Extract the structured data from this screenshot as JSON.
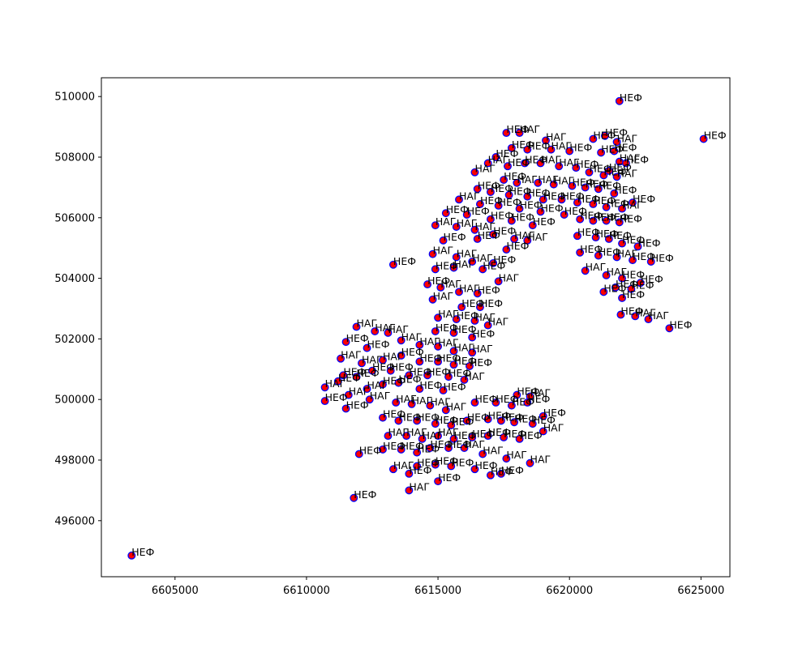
{
  "chart_data": {
    "type": "scatter",
    "title": "",
    "xlabel": "",
    "ylabel": "",
    "xlim": [
      6602200,
      6626100
    ],
    "ylim": [
      494150,
      510620
    ],
    "x_ticks": [
      6605000,
      6610000,
      6615000,
      6620000,
      6625000
    ],
    "y_ticks": [
      496000,
      498000,
      500000,
      502000,
      504000,
      506000,
      508000,
      510000
    ],
    "x_tick_labels": [
      "6605000",
      "6610000",
      "6615000",
      "6620000",
      "6625000"
    ],
    "y_tick_labels": [
      "496000",
      "498000",
      "500000",
      "502000",
      "504000",
      "506000",
      "508000",
      "510000"
    ],
    "grid": false,
    "legend": "none",
    "marker_fill": "#ff0000",
    "marker_edge": "#0000ff",
    "points": [
      {
        "x": 6603350,
        "y": 494850,
        "label": "НЕФ"
      },
      {
        "x": 6621900,
        "y": 509850,
        "label": "НЕФ"
      },
      {
        "x": 6625100,
        "y": 508600,
        "label": "НЕФ"
      },
      {
        "x": 6623800,
        "y": 502350,
        "label": "НЕФ"
      },
      {
        "x": 6623000,
        "y": 502650,
        "label": "НАГ"
      },
      {
        "x": 6622500,
        "y": 502750,
        "label": "НАГ"
      },
      {
        "x": 6621950,
        "y": 502800,
        "label": "НЕФ"
      },
      {
        "x": 6622000,
        "y": 503350,
        "label": "НЕФ"
      },
      {
        "x": 6622350,
        "y": 503650,
        "label": "НЕФ"
      },
      {
        "x": 6621750,
        "y": 503700,
        "label": "НЕФ"
      },
      {
        "x": 6622700,
        "y": 503850,
        "label": "НЕФ"
      },
      {
        "x": 6621300,
        "y": 503550,
        "label": "НЕФ"
      },
      {
        "x": 6617600,
        "y": 508800,
        "label": "НЕФ"
      },
      {
        "x": 6618100,
        "y": 508800,
        "label": "НАГ"
      },
      {
        "x": 6619100,
        "y": 508550,
        "label": "НАГ"
      },
      {
        "x": 6617800,
        "y": 508300,
        "label": "НЕФ"
      },
      {
        "x": 6618400,
        "y": 508250,
        "label": "НЕФ"
      },
      {
        "x": 6619300,
        "y": 508250,
        "label": "НАГ"
      },
      {
        "x": 6620000,
        "y": 508200,
        "label": "НЕФ"
      },
      {
        "x": 6620900,
        "y": 508600,
        "label": "НЕФ"
      },
      {
        "x": 6621350,
        "y": 508700,
        "label": "НЕФ"
      },
      {
        "x": 6621800,
        "y": 508500,
        "label": "НАГ"
      },
      {
        "x": 6621700,
        "y": 508200,
        "label": "НЕФ"
      },
      {
        "x": 6621200,
        "y": 508150,
        "label": "НЕФ"
      },
      {
        "x": 6621900,
        "y": 507850,
        "label": "НАГ"
      },
      {
        "x": 6622150,
        "y": 507800,
        "label": "НЕФ"
      },
      {
        "x": 6621800,
        "y": 507350,
        "label": "НАГ"
      },
      {
        "x": 6621500,
        "y": 507550,
        "label": "НЕФ"
      },
      {
        "x": 6617200,
        "y": 508000,
        "label": "НЕФ"
      },
      {
        "x": 6616900,
        "y": 507800,
        "label": "НАГ"
      },
      {
        "x": 6617650,
        "y": 507700,
        "label": "НЕФ"
      },
      {
        "x": 6618300,
        "y": 507800,
        "label": "НЕФ"
      },
      {
        "x": 6618900,
        "y": 507800,
        "label": "НАГ"
      },
      {
        "x": 6619600,
        "y": 507700,
        "label": "НАГ"
      },
      {
        "x": 6620250,
        "y": 507650,
        "label": "НЕФ"
      },
      {
        "x": 6620750,
        "y": 507500,
        "label": "НЕФ"
      },
      {
        "x": 6621300,
        "y": 507400,
        "label": "НЕФ"
      },
      {
        "x": 6616400,
        "y": 507500,
        "label": "НАГ"
      },
      {
        "x": 6617500,
        "y": 507250,
        "label": "НЕФ"
      },
      {
        "x": 6618000,
        "y": 507150,
        "label": "НАГ"
      },
      {
        "x": 6618800,
        "y": 507150,
        "label": "НАГ"
      },
      {
        "x": 6619400,
        "y": 507100,
        "label": "НАГ"
      },
      {
        "x": 6620100,
        "y": 507050,
        "label": "НЕФ"
      },
      {
        "x": 6620600,
        "y": 507000,
        "label": "НЕФ"
      },
      {
        "x": 6621100,
        "y": 506950,
        "label": "НЕФ"
      },
      {
        "x": 6621700,
        "y": 506800,
        "label": "НЕФ"
      },
      {
        "x": 6616500,
        "y": 506950,
        "label": "НЕФ"
      },
      {
        "x": 6617000,
        "y": 506850,
        "label": "НЕФ"
      },
      {
        "x": 6617700,
        "y": 506750,
        "label": "НЕФ"
      },
      {
        "x": 6618400,
        "y": 506700,
        "label": "НЕФ"
      },
      {
        "x": 6619000,
        "y": 506600,
        "label": "НЕФ"
      },
      {
        "x": 6619700,
        "y": 506600,
        "label": "НЕФ"
      },
      {
        "x": 6620300,
        "y": 506500,
        "label": "НЕФ"
      },
      {
        "x": 6620900,
        "y": 506450,
        "label": "НЕФ"
      },
      {
        "x": 6621400,
        "y": 506350,
        "label": "НЕФ"
      },
      {
        "x": 6622000,
        "y": 506300,
        "label": "НАГ"
      },
      {
        "x": 6622400,
        "y": 506500,
        "label": "НЕФ"
      },
      {
        "x": 6615800,
        "y": 506600,
        "label": "НАГ"
      },
      {
        "x": 6616600,
        "y": 506450,
        "label": "НЕФ"
      },
      {
        "x": 6617300,
        "y": 506400,
        "label": "НЕФ"
      },
      {
        "x": 6618100,
        "y": 506300,
        "label": "НЕФ"
      },
      {
        "x": 6618900,
        "y": 506200,
        "label": "НЕФ"
      },
      {
        "x": 6619800,
        "y": 506100,
        "label": "НЕФ"
      },
      {
        "x": 6620400,
        "y": 505950,
        "label": "НЕФ"
      },
      {
        "x": 6620900,
        "y": 505900,
        "label": "НЕФ"
      },
      {
        "x": 6621400,
        "y": 505900,
        "label": "НЕФ"
      },
      {
        "x": 6621900,
        "y": 505850,
        "label": "НЕФ"
      },
      {
        "x": 6615300,
        "y": 506150,
        "label": "НЕФ"
      },
      {
        "x": 6616100,
        "y": 506100,
        "label": "НЕФ"
      },
      {
        "x": 6617000,
        "y": 505950,
        "label": "НЕФ"
      },
      {
        "x": 6617800,
        "y": 505900,
        "label": "НЕФ"
      },
      {
        "x": 6618600,
        "y": 505750,
        "label": "НЕФ"
      },
      {
        "x": 6614900,
        "y": 505750,
        "label": "НАГ"
      },
      {
        "x": 6615700,
        "y": 505700,
        "label": "НАГ"
      },
      {
        "x": 6616400,
        "y": 505600,
        "label": "НАГ"
      },
      {
        "x": 6617100,
        "y": 505450,
        "label": "НЕФ"
      },
      {
        "x": 6617900,
        "y": 505300,
        "label": "НАГ"
      },
      {
        "x": 6618400,
        "y": 505250,
        "label": "НАГ"
      },
      {
        "x": 6620300,
        "y": 505400,
        "label": "НЕФ"
      },
      {
        "x": 6621000,
        "y": 505350,
        "label": "НЕФ"
      },
      {
        "x": 6621500,
        "y": 505300,
        "label": "НЕФ"
      },
      {
        "x": 6622000,
        "y": 505150,
        "label": "НЕФ"
      },
      {
        "x": 6622600,
        "y": 505050,
        "label": "НЕФ"
      },
      {
        "x": 6615200,
        "y": 505250,
        "label": "НЕФ"
      },
      {
        "x": 6616500,
        "y": 505300,
        "label": "НЕФ"
      },
      {
        "x": 6617600,
        "y": 504950,
        "label": "НЕФ"
      },
      {
        "x": 6620400,
        "y": 504850,
        "label": "НЕФ"
      },
      {
        "x": 6621100,
        "y": 504750,
        "label": "НЕФ"
      },
      {
        "x": 6621800,
        "y": 504700,
        "label": "НАГ"
      },
      {
        "x": 6622400,
        "y": 504600,
        "label": "НЕФ"
      },
      {
        "x": 6623100,
        "y": 504550,
        "label": "НЕФ"
      },
      {
        "x": 6614800,
        "y": 504800,
        "label": "НАГ"
      },
      {
        "x": 6615700,
        "y": 504700,
        "label": "НАГ"
      },
      {
        "x": 6616300,
        "y": 504550,
        "label": "НАГ"
      },
      {
        "x": 6617100,
        "y": 504500,
        "label": "НЕФ"
      },
      {
        "x": 6620600,
        "y": 504250,
        "label": "НАГ"
      },
      {
        "x": 6621400,
        "y": 504100,
        "label": "НАГ"
      },
      {
        "x": 6622000,
        "y": 504000,
        "label": "НЕФ"
      },
      {
        "x": 6613300,
        "y": 504450,
        "label": "НЕФ"
      },
      {
        "x": 6614900,
        "y": 504300,
        "label": "НЕФ"
      },
      {
        "x": 6615600,
        "y": 504350,
        "label": "НАГ"
      },
      {
        "x": 6616700,
        "y": 504300,
        "label": "НЕФ"
      },
      {
        "x": 6617300,
        "y": 503900,
        "label": "НАГ"
      },
      {
        "x": 6614600,
        "y": 503800,
        "label": "НЕФ"
      },
      {
        "x": 6615100,
        "y": 503700,
        "label": "НАГ"
      },
      {
        "x": 6615800,
        "y": 503550,
        "label": "НАГ"
      },
      {
        "x": 6616500,
        "y": 503500,
        "label": "НЕФ"
      },
      {
        "x": 6614800,
        "y": 503300,
        "label": "НАГ"
      },
      {
        "x": 6615900,
        "y": 503050,
        "label": "НЕФ"
      },
      {
        "x": 6616600,
        "y": 503050,
        "label": "НЕФ"
      },
      {
        "x": 6615000,
        "y": 502700,
        "label": "НАГ"
      },
      {
        "x": 6615700,
        "y": 502650,
        "label": "НЕФ"
      },
      {
        "x": 6616400,
        "y": 502600,
        "label": "НАГ"
      },
      {
        "x": 6616900,
        "y": 502450,
        "label": "НАГ"
      },
      {
        "x": 6614900,
        "y": 502250,
        "label": "НЕФ"
      },
      {
        "x": 6615600,
        "y": 502200,
        "label": "НЕФ"
      },
      {
        "x": 6616300,
        "y": 502050,
        "label": "НЕФ"
      },
      {
        "x": 6611900,
        "y": 502400,
        "label": "НАГ"
      },
      {
        "x": 6612600,
        "y": 502250,
        "label": "НАГ"
      },
      {
        "x": 6613100,
        "y": 502200,
        "label": "НАГ"
      },
      {
        "x": 6611500,
        "y": 501900,
        "label": "НЕФ"
      },
      {
        "x": 6612300,
        "y": 501700,
        "label": "НЕФ"
      },
      {
        "x": 6613600,
        "y": 501950,
        "label": "НАГ"
      },
      {
        "x": 6614300,
        "y": 501800,
        "label": "НАГ"
      },
      {
        "x": 6615000,
        "y": 501750,
        "label": "НАГ"
      },
      {
        "x": 6615600,
        "y": 501600,
        "label": "НАГ"
      },
      {
        "x": 6616300,
        "y": 501550,
        "label": "НАГ"
      },
      {
        "x": 6611300,
        "y": 501350,
        "label": "НАГ"
      },
      {
        "x": 6612100,
        "y": 501200,
        "label": "НАГ"
      },
      {
        "x": 6612900,
        "y": 501300,
        "label": "НАГ"
      },
      {
        "x": 6613600,
        "y": 501450,
        "label": "НЕФ"
      },
      {
        "x": 6614300,
        "y": 501250,
        "label": "НЕФ"
      },
      {
        "x": 6615000,
        "y": 501250,
        "label": "НЕФ"
      },
      {
        "x": 6615600,
        "y": 501150,
        "label": "НЕФ"
      },
      {
        "x": 6616200,
        "y": 501100,
        "label": "НЕФ"
      },
      {
        "x": 6611400,
        "y": 500800,
        "label": "НЕФ"
      },
      {
        "x": 6611900,
        "y": 500750,
        "label": "НЕФ"
      },
      {
        "x": 6612500,
        "y": 500950,
        "label": "НЕФ"
      },
      {
        "x": 6613200,
        "y": 500950,
        "label": "НЕФ"
      },
      {
        "x": 6613900,
        "y": 500800,
        "label": "НЕФ"
      },
      {
        "x": 6614600,
        "y": 500800,
        "label": "НЕФ"
      },
      {
        "x": 6615400,
        "y": 500750,
        "label": "НЕФ"
      },
      {
        "x": 6616000,
        "y": 500650,
        "label": "НАГ"
      },
      {
        "x": 6610700,
        "y": 500400,
        "label": "НАГ"
      },
      {
        "x": 6611200,
        "y": 500600,
        "label": "НЕФ"
      },
      {
        "x": 6612300,
        "y": 500350,
        "label": "НАГ"
      },
      {
        "x": 6612900,
        "y": 500500,
        "label": "НЕФ"
      },
      {
        "x": 6613500,
        "y": 500550,
        "label": "НЕФ"
      },
      {
        "x": 6614300,
        "y": 500350,
        "label": "НЕФ"
      },
      {
        "x": 6615200,
        "y": 500300,
        "label": "НЕФ"
      },
      {
        "x": 6610700,
        "y": 499950,
        "label": "НЕФ"
      },
      {
        "x": 6611600,
        "y": 500150,
        "label": "НАГ"
      },
      {
        "x": 6612400,
        "y": 500000,
        "label": "НАГ"
      },
      {
        "x": 6611500,
        "y": 499700,
        "label": "НЕФ"
      },
      {
        "x": 6613400,
        "y": 499900,
        "label": "НАГ"
      },
      {
        "x": 6614000,
        "y": 499850,
        "label": "НАГ"
      },
      {
        "x": 6614700,
        "y": 499800,
        "label": "НАГ"
      },
      {
        "x": 6615300,
        "y": 499650,
        "label": "НАГ"
      },
      {
        "x": 6616400,
        "y": 499900,
        "label": "НЕФ"
      },
      {
        "x": 6617200,
        "y": 499900,
        "label": "НЕФ"
      },
      {
        "x": 6617800,
        "y": 499800,
        "label": "НЕФ"
      },
      {
        "x": 6618400,
        "y": 499900,
        "label": "НЕФ"
      },
      {
        "x": 6618000,
        "y": 500150,
        "label": "НЕФ"
      },
      {
        "x": 6618500,
        "y": 500100,
        "label": "НАГ"
      },
      {
        "x": 6612900,
        "y": 499400,
        "label": "НЕФ"
      },
      {
        "x": 6613500,
        "y": 499300,
        "label": "НЕФ"
      },
      {
        "x": 6614200,
        "y": 499300,
        "label": "НЕФ"
      },
      {
        "x": 6614900,
        "y": 499200,
        "label": "НЕФ"
      },
      {
        "x": 6615500,
        "y": 499150,
        "label": "НЕФ"
      },
      {
        "x": 6616100,
        "y": 499300,
        "label": "НЕФ"
      },
      {
        "x": 6616900,
        "y": 499350,
        "label": "НЕФ"
      },
      {
        "x": 6617400,
        "y": 499300,
        "label": "НЕФ"
      },
      {
        "x": 6617900,
        "y": 499250,
        "label": "НЕФ"
      },
      {
        "x": 6618600,
        "y": 499200,
        "label": "НЕФ"
      },
      {
        "x": 6619000,
        "y": 499450,
        "label": "НЕФ"
      },
      {
        "x": 6619000,
        "y": 498950,
        "label": "НАГ"
      },
      {
        "x": 6613100,
        "y": 498800,
        "label": "НАГ"
      },
      {
        "x": 6613800,
        "y": 498800,
        "label": "НАГ"
      },
      {
        "x": 6614400,
        "y": 498700,
        "label": "НАГ"
      },
      {
        "x": 6615000,
        "y": 498800,
        "label": "НАГ"
      },
      {
        "x": 6615600,
        "y": 498700,
        "label": "НЕФ"
      },
      {
        "x": 6616300,
        "y": 498750,
        "label": "НЕФ"
      },
      {
        "x": 6616900,
        "y": 498800,
        "label": "НЕФ"
      },
      {
        "x": 6617500,
        "y": 498750,
        "label": "НЕФ"
      },
      {
        "x": 6618100,
        "y": 498700,
        "label": "НЕФ"
      },
      {
        "x": 6613600,
        "y": 498350,
        "label": "НЕФ"
      },
      {
        "x": 6614200,
        "y": 498250,
        "label": "НЕФ"
      },
      {
        "x": 6614700,
        "y": 498400,
        "label": "НЕФ"
      },
      {
        "x": 6615400,
        "y": 498400,
        "label": "НЕФ"
      },
      {
        "x": 6616000,
        "y": 498400,
        "label": "НАГ"
      },
      {
        "x": 6612000,
        "y": 498200,
        "label": "НЕФ"
      },
      {
        "x": 6612900,
        "y": 498350,
        "label": "НЕФ"
      },
      {
        "x": 6616700,
        "y": 498200,
        "label": "НАГ"
      },
      {
        "x": 6617600,
        "y": 498050,
        "label": "НАГ"
      },
      {
        "x": 6618500,
        "y": 497900,
        "label": "НАГ"
      },
      {
        "x": 6614200,
        "y": 497800,
        "label": "НЕФ"
      },
      {
        "x": 6614900,
        "y": 497850,
        "label": "НЕФ"
      },
      {
        "x": 6615500,
        "y": 497800,
        "label": "НЕФ"
      },
      {
        "x": 6616400,
        "y": 497700,
        "label": "НЕФ"
      },
      {
        "x": 6617000,
        "y": 497500,
        "label": "НЕФ"
      },
      {
        "x": 6617400,
        "y": 497550,
        "label": "НЕФ"
      },
      {
        "x": 6613300,
        "y": 497700,
        "label": "НАГ"
      },
      {
        "x": 6613900,
        "y": 497550,
        "label": "НЕФ"
      },
      {
        "x": 6615000,
        "y": 497300,
        "label": "НЕФ"
      },
      {
        "x": 6613900,
        "y": 497000,
        "label": "НАГ"
      },
      {
        "x": 6611800,
        "y": 496750,
        "label": "НЕФ"
      }
    ]
  }
}
